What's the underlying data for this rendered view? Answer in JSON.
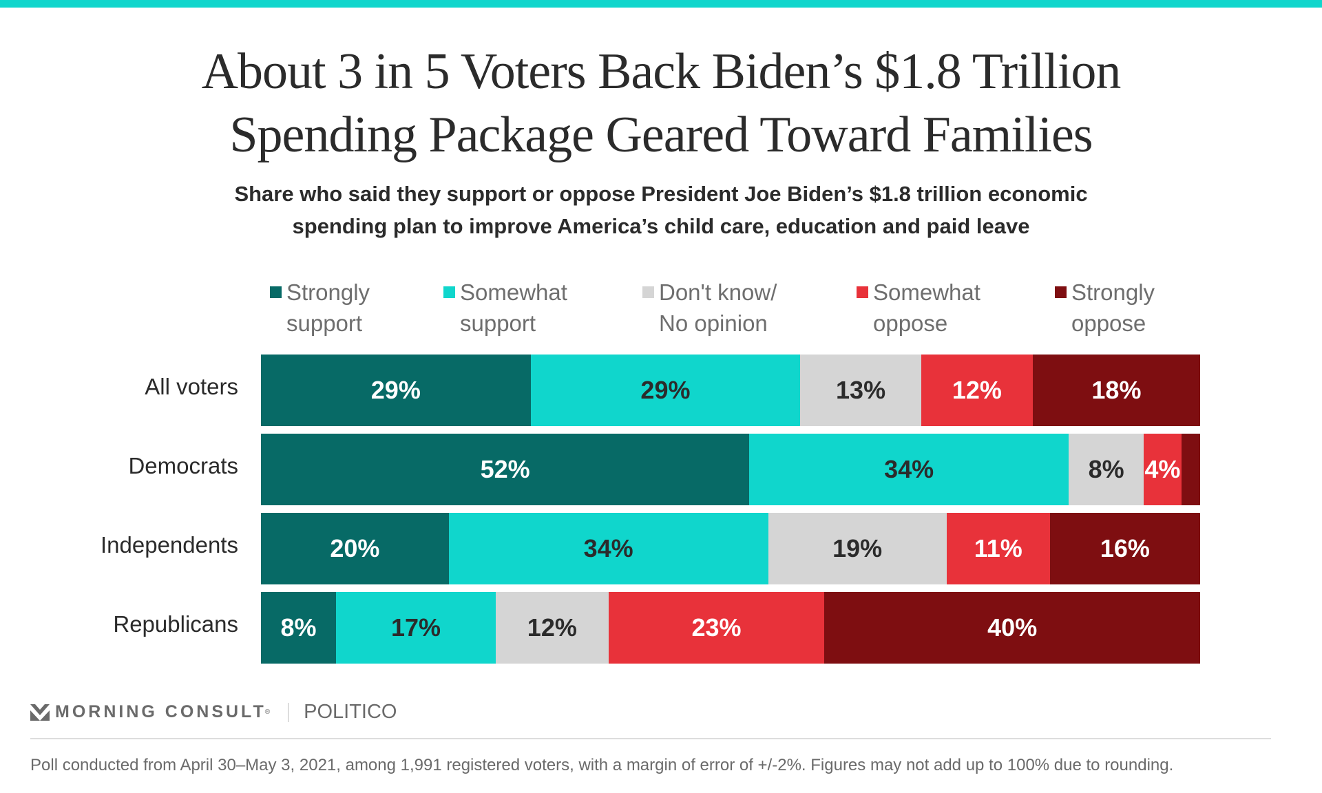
{
  "chart_data": {
    "type": "bar",
    "orientation": "horizontal-stacked-100",
    "title": "About 3 in 5 Voters Back Biden’s $1.8 Trillion Spending Package Geared Toward Families",
    "subtitle": "Share who said they support or oppose President Joe Biden’s $1.8 trillion economic spending plan to improve America’s child care, education and paid leave",
    "xlabel": "",
    "ylabel": "",
    "xlim": [
      0,
      100
    ],
    "grid": false,
    "legend_position": "top",
    "categories": [
      "All voters",
      "Democrats",
      "Independents",
      "Republicans"
    ],
    "series": [
      {
        "name": "Strongly support",
        "color": "#076a66",
        "label_color": "#ffffff",
        "values": [
          29,
          52,
          20,
          8
        ],
        "labels": [
          "29%",
          "52%",
          "20%",
          "8%"
        ]
      },
      {
        "name": "Somewhat support",
        "color": "#10d6cc",
        "label_color": "#2b2b2b",
        "values": [
          29,
          34,
          34,
          17
        ],
        "labels": [
          "29%",
          "34%",
          "34%",
          "17%"
        ]
      },
      {
        "name": "Don't know/ No opinion",
        "color": "#d5d5d5",
        "label_color": "#2b2b2b",
        "values": [
          13,
          8,
          19,
          12
        ],
        "labels": [
          "13%",
          "8%",
          "19%",
          "12%"
        ]
      },
      {
        "name": "Somewhat oppose",
        "color": "#e8323a",
        "label_color": "#ffffff",
        "values": [
          12,
          4,
          11,
          23
        ],
        "labels": [
          "12%",
          "4%",
          "11%",
          "23%"
        ]
      },
      {
        "name": "Strongly oppose",
        "color": "#7e0e11",
        "label_color": "#ffffff",
        "values": [
          18,
          2,
          16,
          40
        ],
        "labels": [
          "18%",
          "",
          "16%",
          "40%"
        ]
      }
    ]
  },
  "header": {
    "title_line1": "About 3 in 5 Voters Back Biden’s $1.8 Trillion",
    "title_line2": "Spending Package Geared Toward Families",
    "subtitle_line1": "Share who said they support or oppose President Joe Biden’s $1.8 trillion economic",
    "subtitle_line2": "spending plan to improve America’s child care, education and paid leave",
    "accent_color": "#10d6cc"
  },
  "legend": [
    {
      "label": "Strongly\nsupport"
    },
    {
      "label": "Somewhat\nsupport"
    },
    {
      "label": "Don't know/\nNo opinion"
    },
    {
      "label": "Somewhat\noppose"
    },
    {
      "label": "Strongly\noppose"
    }
  ],
  "footer": {
    "brand": "MORNING CONSULT",
    "brand_mark": "®",
    "partner": "POLITICO",
    "note": "Poll conducted from April 30–May 3, 2021, among 1,991 registered voters, with a margin of error of +/-2%. Figures may not add up to 100% due to rounding."
  }
}
